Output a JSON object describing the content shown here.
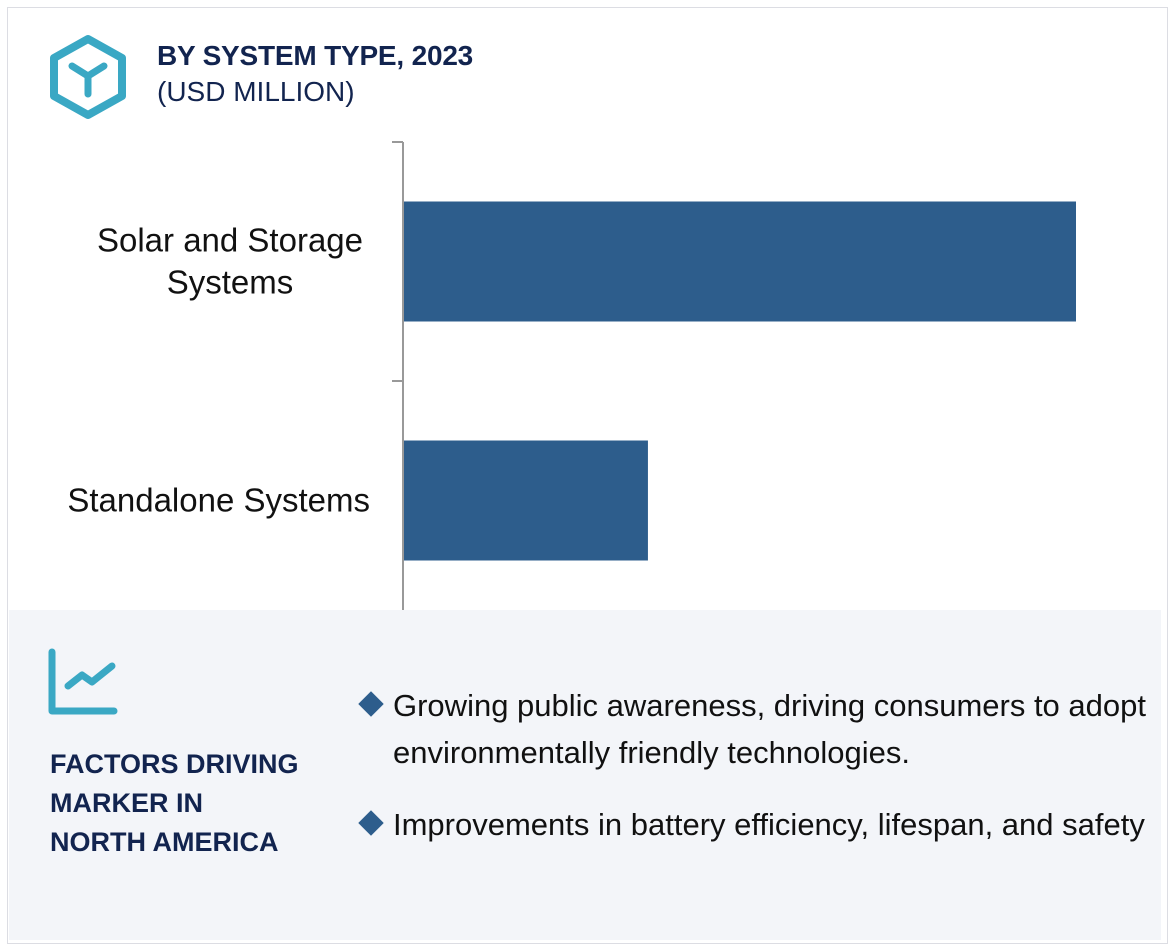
{
  "header": {
    "title": "BY SYSTEM TYPE, 2023",
    "subtitle": "(USD MILLION)",
    "icon": "cube-icon"
  },
  "colors": {
    "bar": "#2d5d8c",
    "accent": "#3aa8c4",
    "heading": "#12244f",
    "panel_bg": "#f3f5f9"
  },
  "chart_data": {
    "type": "bar",
    "orientation": "horizontal",
    "title": "BY SYSTEM TYPE, 2023",
    "subtitle": "(USD MILLION)",
    "categories": [
      "Solar and Storage Systems",
      "Standalone Systems"
    ],
    "category_label_lines": [
      [
        "Solar and Storage",
        "Systems"
      ],
      [
        "Standalone Systems"
      ]
    ],
    "values_relative": [
      1.0,
      0.363
    ],
    "value_axis_labels_shown": false,
    "grid": false
  },
  "factors": {
    "icon": "trend-chart-icon",
    "heading_lines": [
      "FACTORS DRIVING",
      "MARKER IN",
      "NORTH AMERICA"
    ],
    "bullets": [
      "Growing public awareness, driving consumers to adopt environmentally friendly technologies.",
      "Improvements in battery efficiency, lifespan, and safety"
    ]
  }
}
